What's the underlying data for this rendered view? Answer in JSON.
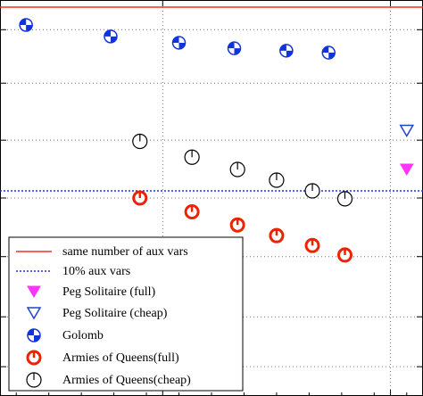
{
  "chart_data": {
    "type": "scatter",
    "grid": true,
    "grid_style": "dotted",
    "xlim": [
      0,
      13
    ],
    "ylim": [
      0,
      1
    ],
    "x_ticks": [
      5,
      12
    ],
    "y_ticks": [
      0.074,
      0.2,
      0.352,
      0.5,
      0.646,
      0.79,
      0.925
    ],
    "legend_position": "bottom-left",
    "reference_lines": [
      {
        "name": "same number of aux vars",
        "y": 0.982,
        "color": "#ee3322",
        "style": "solid"
      },
      {
        "name": "10% aux vars",
        "y": 0.518,
        "color": "#2233cc",
        "style": "dotted"
      }
    ],
    "series": [
      {
        "name": "Peg Solitaire (full)",
        "marker": "triangle-down-filled",
        "color": "#ff33ff",
        "points": [
          [
            12.5,
            0.572
          ]
        ]
      },
      {
        "name": "Peg Solitaire (cheap)",
        "marker": "triangle-down-open",
        "color": "#2244cc",
        "points": [
          [
            12.5,
            0.67
          ]
        ]
      },
      {
        "name": "Golomb",
        "marker": "half-filled-circle",
        "color": "#1133dd",
        "points": [
          [
            0.8,
            0.937
          ],
          [
            3.4,
            0.908
          ],
          [
            5.5,
            0.892
          ],
          [
            7.2,
            0.878
          ],
          [
            8.8,
            0.872
          ],
          [
            10.1,
            0.867
          ]
        ]
      },
      {
        "name": "Armies of Queens(full)",
        "marker": "open-circle-tick",
        "color": "#ee2200",
        "points": [
          [
            4.3,
            0.5
          ],
          [
            5.9,
            0.465
          ],
          [
            7.3,
            0.432
          ],
          [
            8.5,
            0.405
          ],
          [
            9.6,
            0.38
          ],
          [
            10.6,
            0.356
          ]
        ]
      },
      {
        "name": "Armies of Queens(cheap)",
        "marker": "open-circle-tick",
        "color": "#000000",
        "points": [
          [
            4.3,
            0.643
          ],
          [
            5.9,
            0.603
          ],
          [
            7.3,
            0.572
          ],
          [
            8.5,
            0.545
          ],
          [
            9.6,
            0.518
          ],
          [
            10.6,
            0.498
          ]
        ]
      }
    ],
    "legend": [
      "same number of aux vars",
      "10% aux vars",
      "Peg Solitaire (full)",
      "Peg Solitaire (cheap)",
      "Golomb",
      "Armies of Queens(full)",
      "Armies of Queens(cheap)"
    ]
  }
}
